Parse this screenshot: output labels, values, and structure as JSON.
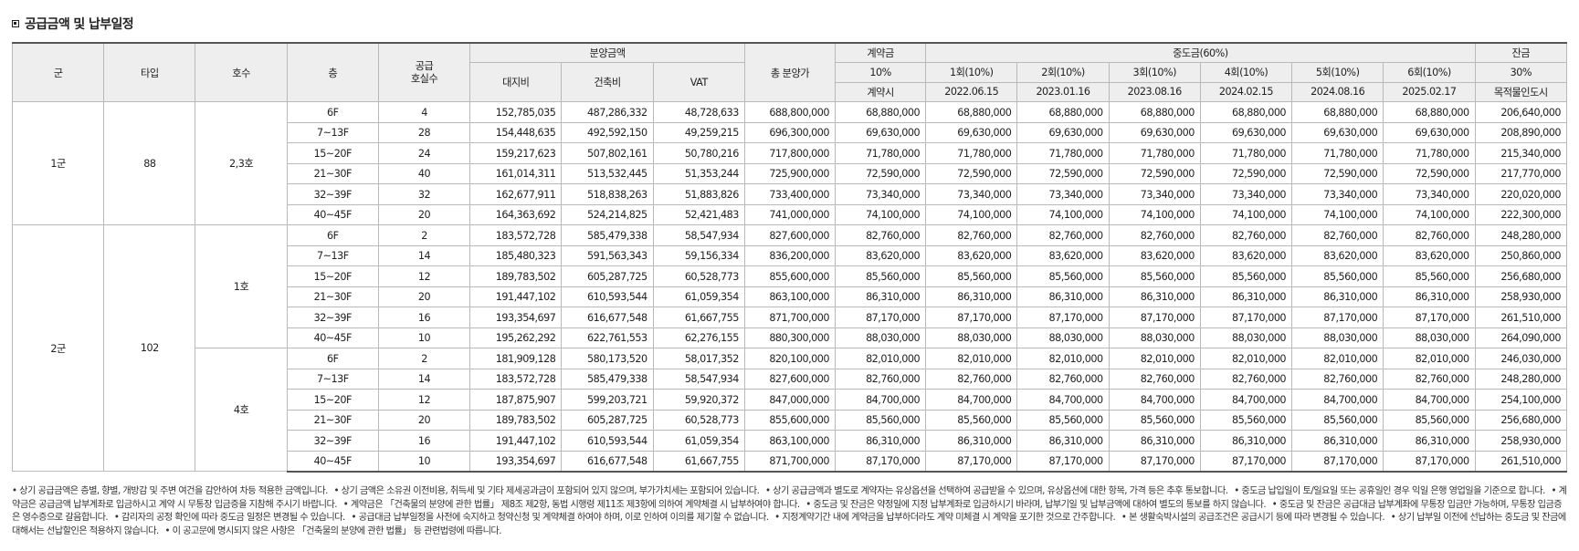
{
  "title": "공급금액 및 납부일정",
  "header": {
    "group": "군",
    "type": "타입",
    "unit": "호수",
    "floor": "층",
    "supply_units": "공급\n호실수",
    "sale_price": "분양금액",
    "land": "대지비",
    "building": "건축비",
    "vat": "VAT",
    "total": "총 분양가",
    "contract": "계약금",
    "contract_pct": "10%",
    "contract_when": "계약시",
    "middle": "중도금(60%)",
    "middle_items": [
      {
        "label": "1회(10%)",
        "date": "2022.06.15"
      },
      {
        "label": "2회(10%)",
        "date": "2023.01.16"
      },
      {
        "label": "3회(10%)",
        "date": "2023.08.16"
      },
      {
        "label": "4회(10%)",
        "date": "2024.02.15"
      },
      {
        "label": "5회(10%)",
        "date": "2024.08.16"
      },
      {
        "label": "6회(10%)",
        "date": "2025.02.17"
      }
    ],
    "balance": "잔금",
    "balance_pct": "30%",
    "balance_when": "목적물인도시"
  },
  "groups": [
    {
      "group": "1군",
      "type": "88",
      "units": [
        {
          "unit": "2,3호",
          "rows": [
            {
              "floor": "6F",
              "count": "4",
              "land": "152,785,035",
              "building": "487,286,332",
              "vat": "48,728,633",
              "total": "688,800,000",
              "contract": "68,880,000",
              "middle": "68,880,000",
              "balance": "206,640,000"
            },
            {
              "floor": "7~13F",
              "count": "28",
              "land": "154,448,635",
              "building": "492,592,150",
              "vat": "49,259,215",
              "total": "696,300,000",
              "contract": "69,630,000",
              "middle": "69,630,000",
              "balance": "208,890,000"
            },
            {
              "floor": "15~20F",
              "count": "24",
              "land": "159,217,623",
              "building": "507,802,161",
              "vat": "50,780,216",
              "total": "717,800,000",
              "contract": "71,780,000",
              "middle": "71,780,000",
              "balance": "215,340,000"
            },
            {
              "floor": "21~30F",
              "count": "40",
              "land": "161,014,311",
              "building": "513,532,445",
              "vat": "51,353,244",
              "total": "725,900,000",
              "contract": "72,590,000",
              "middle": "72,590,000",
              "balance": "217,770,000"
            },
            {
              "floor": "32~39F",
              "count": "32",
              "land": "162,677,911",
              "building": "518,838,263",
              "vat": "51,883,826",
              "total": "733,400,000",
              "contract": "73,340,000",
              "middle": "73,340,000",
              "balance": "220,020,000"
            },
            {
              "floor": "40~45F",
              "count": "20",
              "land": "164,363,692",
              "building": "524,214,825",
              "vat": "52,421,483",
              "total": "741,000,000",
              "contract": "74,100,000",
              "middle": "74,100,000",
              "balance": "222,300,000"
            }
          ]
        }
      ]
    },
    {
      "group": "2군",
      "type": "102",
      "units": [
        {
          "unit": "1호",
          "rows": [
            {
              "floor": "6F",
              "count": "2",
              "land": "183,572,728",
              "building": "585,479,338",
              "vat": "58,547,934",
              "total": "827,600,000",
              "contract": "82,760,000",
              "middle": "82,760,000",
              "balance": "248,280,000"
            },
            {
              "floor": "7~13F",
              "count": "14",
              "land": "185,480,323",
              "building": "591,563,343",
              "vat": "59,156,334",
              "total": "836,200,000",
              "contract": "83,620,000",
              "middle": "83,620,000",
              "balance": "250,860,000"
            },
            {
              "floor": "15~20F",
              "count": "12",
              "land": "189,783,502",
              "building": "605,287,725",
              "vat": "60,528,773",
              "total": "855,600,000",
              "contract": "85,560,000",
              "middle": "85,560,000",
              "balance": "256,680,000"
            },
            {
              "floor": "21~30F",
              "count": "20",
              "land": "191,447,102",
              "building": "610,593,544",
              "vat": "61,059,354",
              "total": "863,100,000",
              "contract": "86,310,000",
              "middle": "86,310,000",
              "balance": "258,930,000"
            },
            {
              "floor": "32~39F",
              "count": "16",
              "land": "193,354,697",
              "building": "616,677,548",
              "vat": "61,667,755",
              "total": "871,700,000",
              "contract": "87,170,000",
              "middle": "87,170,000",
              "balance": "261,510,000"
            },
            {
              "floor": "40~45F",
              "count": "10",
              "land": "195,262,292",
              "building": "622,761,553",
              "vat": "62,276,155",
              "total": "880,300,000",
              "contract": "88,030,000",
              "middle": "88,030,000",
              "balance": "264,090,000"
            }
          ]
        },
        {
          "unit": "4호",
          "rows": [
            {
              "floor": "6F",
              "count": "2",
              "land": "181,909,128",
              "building": "580,173,520",
              "vat": "58,017,352",
              "total": "820,100,000",
              "contract": "82,010,000",
              "middle": "82,010,000",
              "balance": "246,030,000"
            },
            {
              "floor": "7~13F",
              "count": "14",
              "land": "183,572,728",
              "building": "585,479,338",
              "vat": "58,547,934",
              "total": "827,600,000",
              "contract": "82,760,000",
              "middle": "82,760,000",
              "balance": "248,280,000"
            },
            {
              "floor": "15~20F",
              "count": "12",
              "land": "187,875,907",
              "building": "599,203,721",
              "vat": "59,920,372",
              "total": "847,000,000",
              "contract": "84,700,000",
              "middle": "84,700,000",
              "balance": "254,100,000"
            },
            {
              "floor": "21~30F",
              "count": "20",
              "land": "189,783,502",
              "building": "605,287,725",
              "vat": "60,528,773",
              "total": "855,600,000",
              "contract": "85,560,000",
              "middle": "85,560,000",
              "balance": "256,680,000"
            },
            {
              "floor": "32~39F",
              "count": "16",
              "land": "191,447,102",
              "building": "610,593,544",
              "vat": "61,059,354",
              "total": "863,100,000",
              "contract": "86,310,000",
              "middle": "86,310,000",
              "balance": "258,930,000"
            },
            {
              "floor": "40~45F",
              "count": "10",
              "land": "193,354,697",
              "building": "616,677,548",
              "vat": "61,667,755",
              "total": "871,700,000",
              "contract": "87,170,000",
              "middle": "87,170,000",
              "balance": "261,510,000"
            }
          ]
        }
      ]
    }
  ],
  "notes": [
    "상기 공급금액은 층별, 향별, 개방감 및 주변 여건을 감안하여 차등 적용한 금액입니다.",
    "상기 금액은 소유권 이전비용, 취득세 및 기타 제세공과금이 포함되어 있지 않으며, 부가가치세는 포함되어 있습니다.",
    "상기 공급금액과 별도로 계약자는 유상옵션을 선택하여 공급받을 수 있으며, 유상옵션에 대한 항목, 가격 등은 추후 통보합니다.",
    "중도금 납입일이 토/일요일 또는 공휴일인 경우 익일 은행 영업일을 기준으로 합니다.",
    "계약금은 공급금액 납부계좌로 입금하시고 계약 시 무통장 입금증을 지참해 주시기 바랍니다.",
    "계약금은 「건축물의 분양에 관한 법률」 제8조 제2항, 동법 시행령 제11조 제3항에 의하여 계약체결 시 납부하여야 합니다.",
    "중도금 및 잔금은 약정일에 지정 납부계좌로 입금하시기 바라며, 납부기일 및 납부금액에 대하여 별도의 통보를 하지 않습니다.",
    "중도금 및 잔금은 공급대금 납부계좌에 무통장 입금만 가능하며, 무통장 입금증은 영수증으로 갈음합니다.",
    "감리자의 공정 확인에 따라 중도금 일정은 변경될 수 있습니다.",
    "공급대금 납부일정을 사전에 숙지하고 청약신청 및 계약체결 하여야 하며, 이로 인하여 이의를 제기할 수 없습니다.",
    "지정계약기간 내에 계약금을 납부하더라도 계약 미체결 시 계약을 포기한 것으로 간주합니다.",
    "본 생활숙박시설의 공급조건은 공급시기 등에 따라 변경될 수 있습니다.",
    "상기 납부일 이전에 선납하는 중도금 및 잔금에 대해서는 선납할인은 적용하지 않습니다.",
    "이 공고문에 명시되지 않은 사항은 「건축물의 분양에 관한 법률」 등 관련법령에 따릅니다."
  ]
}
